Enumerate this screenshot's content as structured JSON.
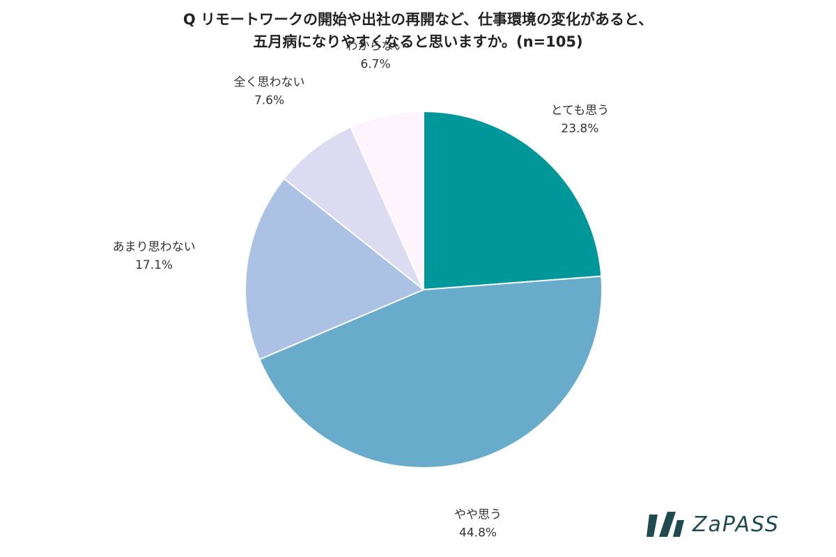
{
  "chart_data": {
    "type": "pie",
    "title_lines": [
      "Q リモートワークの開始や出社の再開など、仕事環境の変化があると、",
      "五月病になりやすくなると思いますか。(n=105)"
    ],
    "start_angle_deg": 0,
    "direction": "clockwise",
    "slices": [
      {
        "label": "とても思う",
        "value": 23.8,
        "value_label": "23.8%",
        "color": "#00979b"
      },
      {
        "label": "やや思う",
        "value": 44.8,
        "value_label": "44.8%",
        "color": "#68abcb"
      },
      {
        "label": "あまり思わない",
        "value": 17.1,
        "value_label": "17.1%",
        "color": "#abc2e4"
      },
      {
        "label": "全く思わない",
        "value": 7.6,
        "value_label": "7.6%",
        "color": "#dcdbf1"
      },
      {
        "label": "わからない",
        "value": 6.7,
        "value_label": "6.7%",
        "color": "#fdf4fd"
      }
    ]
  },
  "logo": {
    "text": "ZaPASS",
    "color": "#1f4a4f"
  }
}
